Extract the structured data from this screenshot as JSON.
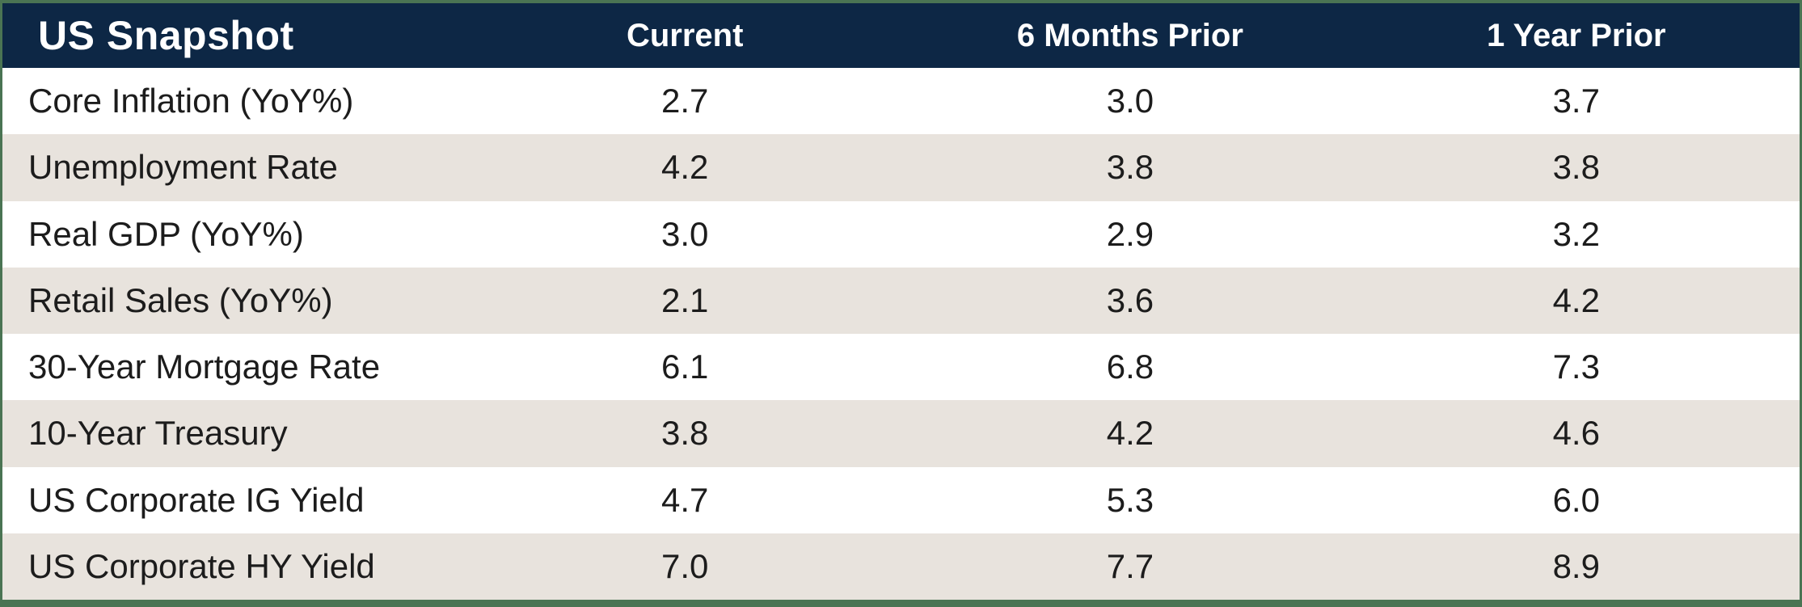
{
  "colors": {
    "navy": "#0d2745",
    "green": "#4a7453",
    "row_alt": "#e8e3dd",
    "header_text": "#ffffff",
    "body_text": "#1c1c1c"
  },
  "table": {
    "title": "US Snapshot",
    "columns": [
      "Current",
      "6 Months Prior",
      "1 Year Prior"
    ],
    "rows": [
      {
        "label": "Core Inflation (YoY%)",
        "values": [
          "2.7",
          "3.0",
          "3.7"
        ]
      },
      {
        "label": "Unemployment Rate",
        "values": [
          "4.2",
          "3.8",
          "3.8"
        ]
      },
      {
        "label": "Real GDP (YoY%)",
        "values": [
          "3.0",
          "2.9",
          "3.2"
        ]
      },
      {
        "label": "Retail Sales (YoY%)",
        "values": [
          "2.1",
          "3.6",
          "4.2"
        ]
      },
      {
        "label": "30-Year Mortgage Rate",
        "values": [
          "6.1",
          "6.8",
          "7.3"
        ]
      },
      {
        "label": "10-Year Treasury",
        "values": [
          "3.8",
          "4.2",
          "4.6"
        ]
      },
      {
        "label": "US Corporate IG Yield",
        "values": [
          "4.7",
          "5.3",
          "6.0"
        ]
      },
      {
        "label": "US Corporate HY Yield",
        "values": [
          "7.0",
          "7.7",
          "8.9"
        ]
      }
    ]
  },
  "chart_data": {
    "type": "table",
    "title": "US Snapshot",
    "columns": [
      "US Snapshot",
      "Current",
      "6 Months Prior",
      "1 Year Prior"
    ],
    "row_labels": [
      "Core Inflation (YoY%)",
      "Unemployment Rate",
      "Real GDP (YoY%)",
      "Retail Sales (YoY%)",
      "30-Year Mortgage Rate",
      "10-Year Treasury",
      "US Corporate IG Yield",
      "US Corporate HY Yield"
    ],
    "series": [
      {
        "name": "Current",
        "values": [
          2.7,
          4.2,
          3.0,
          2.1,
          6.1,
          3.8,
          4.7,
          7.0
        ]
      },
      {
        "name": "6 Months Prior",
        "values": [
          3.0,
          3.8,
          2.9,
          3.6,
          6.8,
          4.2,
          5.3,
          7.7
        ]
      },
      {
        "name": "1 Year Prior",
        "values": [
          3.7,
          3.8,
          3.2,
          4.2,
          7.3,
          4.6,
          6.0,
          8.9
        ]
      }
    ]
  }
}
